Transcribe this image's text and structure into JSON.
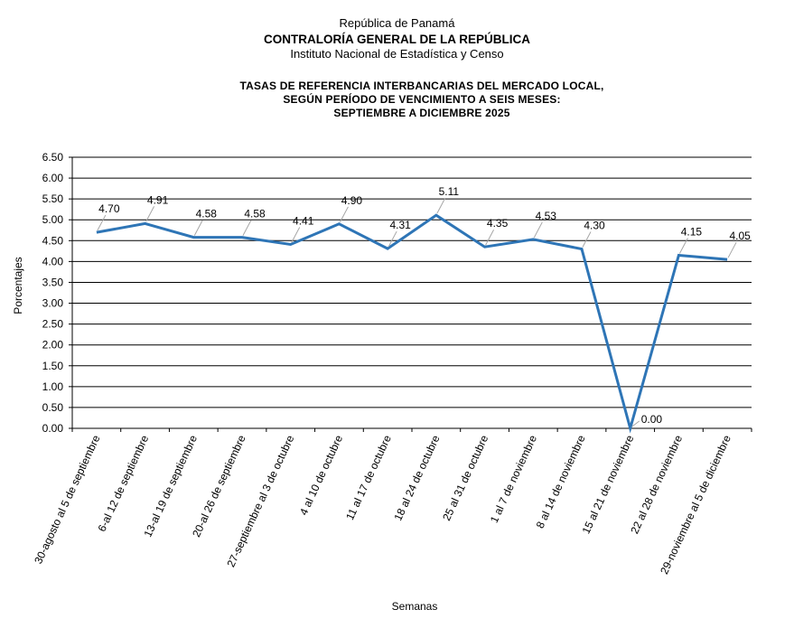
{
  "header": {
    "line1": "República de Panamá",
    "line2": "CONTRALORÍA GENERAL DE LA REPÚBLICA",
    "line3": "Instituto Nacional de Estadística y Censo"
  },
  "chart_data": {
    "type": "line",
    "title_lines": [
      "TASAS DE REFERENCIA INTERBANCARIAS DEL MERCADO LOCAL,",
      "SEGÚN PERÍODO DE VENCIMIENTO A SEIS MESES:",
      "SEPTIEMBRE A DICIEMBRE 2025"
    ],
    "xlabel": "Semanas",
    "ylabel": "Porcentajes",
    "ylim": [
      0,
      6.5
    ],
    "ytick_step": 0.5,
    "grid": true,
    "legend": "none",
    "line_color": "#2E75B6",
    "categories": [
      "30-agosto al 5 de septiembre",
      "6-al 12 de septiembre",
      "13-al 19 de septiembre",
      "20-al 26 de septiembre",
      "27-septiembre al 3 de octubre",
      "4 al 10 de octubre",
      "11 al 17 de octubre",
      "18 al 24 de octubre",
      "25 al 31 de octubre",
      "1 al 7 de noviembre",
      "8 al 14 de noviembre",
      "15 al 21 de noviembre",
      "22 al 28 de noviembre",
      "29-noviembre al 5 de diciembre"
    ],
    "values": [
      4.7,
      4.91,
      4.58,
      4.58,
      4.41,
      4.9,
      4.31,
      5.11,
      4.35,
      4.53,
      4.3,
      0.0,
      4.15,
      4.05
    ]
  }
}
